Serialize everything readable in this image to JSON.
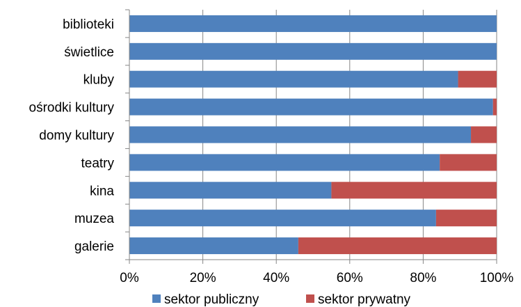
{
  "chart_data": {
    "type": "bar",
    "orientation": "horizontal",
    "stacked": true,
    "categories": [
      "biblioteki",
      "świetlice",
      "kluby",
      "ośrodki kultury",
      "domy kultury",
      "teatry",
      "kina",
      "muzea",
      "galerie"
    ],
    "series": [
      {
        "name": "sektor publiczny",
        "color": "#4F81BD",
        "values": [
          100,
          100,
          89.5,
          99,
          93,
          84.5,
          55,
          83.5,
          46
        ]
      },
      {
        "name": "sektor prywatny",
        "color": "#C0504D",
        "values": [
          0,
          0,
          10.5,
          1,
          7,
          15.5,
          45,
          16.5,
          54
        ]
      }
    ],
    "xlim": [
      0,
      100
    ],
    "xticks": [
      "0%",
      "20%",
      "40%",
      "60%",
      "80%",
      "100%"
    ],
    "grid": true,
    "legend": "bottom"
  }
}
